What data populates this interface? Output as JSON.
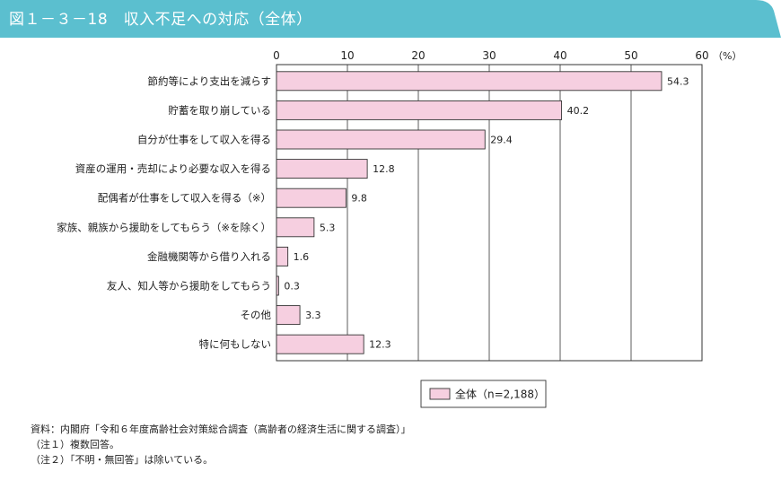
{
  "header": {
    "title": "図１－３－18　収入不足への対応（全体）",
    "color": "#5bbfcf"
  },
  "chart_data": {
    "type": "bar",
    "orientation": "horizontal",
    "categories": [
      "節約等により支出を減らす",
      "貯蓄を取り崩している",
      "自分が仕事をして収入を得る",
      "資産の運用・売却により必要な収入を得る",
      "配偶者が仕事をして収入を得る（※）",
      "家族、親族から援助をしてもらう（※を除く）",
      "金融機関等から借り入れる",
      "友人、知人等から援助をしてもらう",
      "その他",
      "特に何もしない"
    ],
    "series": [
      {
        "name": "全体（n=2,188）",
        "values": [
          54.3,
          40.2,
          29.4,
          12.8,
          9.8,
          5.3,
          1.6,
          0.3,
          3.3,
          12.3
        ],
        "color": "#f6cfe0"
      }
    ],
    "value_labels": [
      "54.3",
      "40.2",
      "29.4",
      "12.8",
      "9.8",
      "5.3",
      "1.6",
      "0.3",
      "3.3",
      "12.3"
    ],
    "xlim": [
      0,
      60
    ],
    "x_ticks": [
      "0",
      "10",
      "20",
      "30",
      "40",
      "50",
      "60"
    ],
    "unit_label": "（%）",
    "grid": true,
    "legend_position": "bottom-center"
  },
  "notes": [
    "資料：内閣府「令和６年度高齢社会対策総合調査（高齢者の経済生活に関する調査）」",
    "（注１）複数回答。",
    "（注２）「不明・無回答」は除いている。"
  ]
}
